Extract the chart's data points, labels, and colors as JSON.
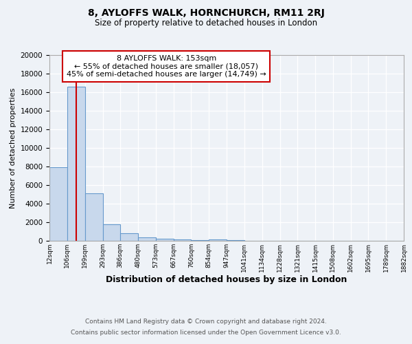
{
  "title1": "8, AYLOFFS WALK, HORNCHURCH, RM11 2RJ",
  "title2": "Size of property relative to detached houses in London",
  "xlabel": "Distribution of detached houses by size in London",
  "ylabel": "Number of detached properties",
  "annotation_title": "8 AYLOFFS WALK: 153sqm",
  "annotation_line1": "← 55% of detached houses are smaller (18,057)",
  "annotation_line2": "45% of semi-detached houses are larger (14,749) →",
  "footnote1": "Contains HM Land Registry data © Crown copyright and database right 2024.",
  "footnote2": "Contains public sector information licensed under the Open Government Licence v3.0.",
  "bar_fill_color": "#c8d8ec",
  "bar_edge_color": "#6699cc",
  "vline_color": "#cc0000",
  "vline_position": 153,
  "bin_edges": [
    12,
    106,
    199,
    293,
    386,
    480,
    573,
    667,
    760,
    854,
    947,
    1041,
    1134,
    1228,
    1321,
    1415,
    1508,
    1602,
    1695,
    1789,
    1882
  ],
  "bin_labels": [
    "12sqm",
    "106sqm",
    "199sqm",
    "293sqm",
    "386sqm",
    "480sqm",
    "573sqm",
    "667sqm",
    "760sqm",
    "854sqm",
    "947sqm",
    "1041sqm",
    "1134sqm",
    "1228sqm",
    "1321sqm",
    "1415sqm",
    "1508sqm",
    "1602sqm",
    "1695sqm",
    "1789sqm",
    "1882sqm"
  ],
  "bar_heights": [
    7900,
    16600,
    5100,
    1750,
    780,
    350,
    200,
    130,
    100,
    130,
    50,
    0,
    0,
    0,
    0,
    0,
    0,
    0,
    0,
    0
  ],
  "ylim": [
    0,
    20000
  ],
  "yticks": [
    0,
    2000,
    4000,
    6000,
    8000,
    10000,
    12000,
    14000,
    16000,
    18000,
    20000
  ],
  "background_color": "#eef2f7",
  "plot_bg_color": "#eef2f7",
  "grid_color": "#ffffff",
  "annotation_box_color": "#ffffff",
  "annotation_box_edge": "#cc0000",
  "footnote_color": "#555555"
}
